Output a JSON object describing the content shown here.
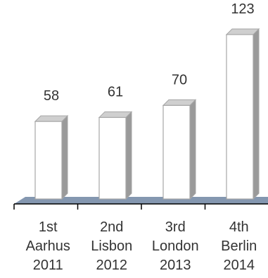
{
  "chart_data": {
    "type": "bar",
    "categories": [
      [
        "1st",
        "Aarhus",
        "2011"
      ],
      [
        "2nd",
        "Lisbon",
        "2012"
      ],
      [
        "3rd",
        "London",
        "2013"
      ],
      [
        "4th",
        "Berlin",
        "2014"
      ]
    ],
    "values": [
      58,
      61,
      70,
      123
    ],
    "title": "",
    "xlabel": "",
    "ylabel": "",
    "ylim": [
      0,
      123
    ],
    "grid": false,
    "legend": "none",
    "colors": {
      "bar_front": "#ffffff",
      "bar_side": "#9a9a9a",
      "bar_top": "#cfcfcf",
      "bar_outline": "#a6a6a6",
      "floor": "#8497b0",
      "axis": "#000000",
      "text": "#333333"
    }
  }
}
